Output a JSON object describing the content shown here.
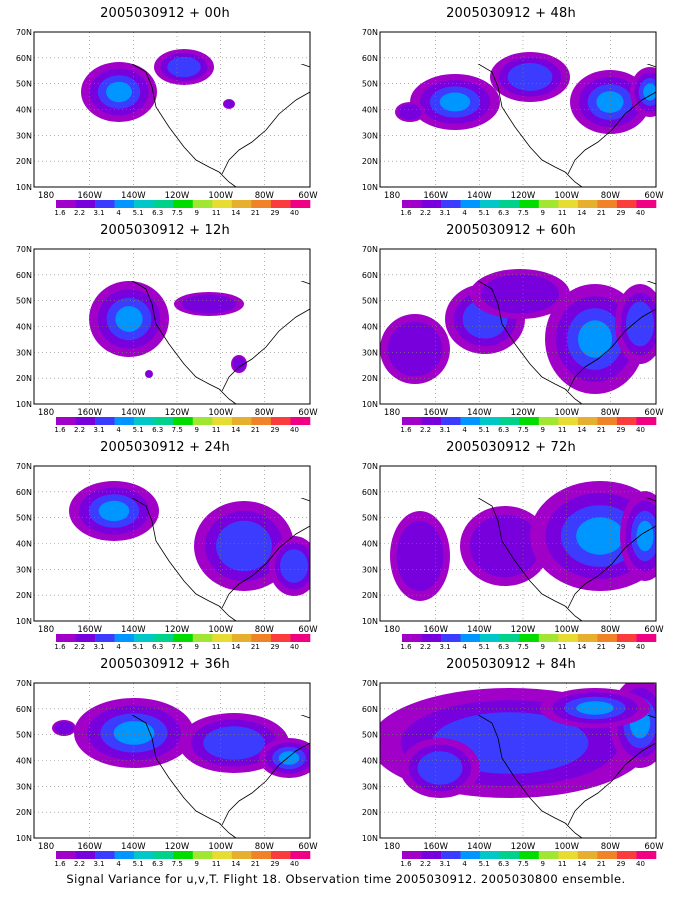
{
  "figure": {
    "caption": "Signal Variance for u,v,T. Flight 18. Observation time 2005030912. 2005030800 ensemble."
  },
  "axes": {
    "lat_labels": [
      "70N",
      "60N",
      "50N",
      "40N",
      "30N",
      "20N",
      "10N"
    ],
    "lon_labels": [
      "180",
      "160W",
      "140W",
      "120W",
      "100W",
      "80W",
      "60W"
    ]
  },
  "colorbar": {
    "labels": [
      "1.6",
      "2.2",
      "3.1",
      "4",
      "5.1",
      "6.3",
      "7.5",
      "9",
      "11",
      "14",
      "21",
      "29",
      "40"
    ],
    "colors": [
      "#a000c8",
      "#7800dc",
      "#3c3cff",
      "#0096ff",
      "#00c8c8",
      "#00d28c",
      "#00dc00",
      "#a0e632",
      "#e6dc32",
      "#e6af2d",
      "#f08228",
      "#fa3c3c",
      "#f00082"
    ]
  },
  "panels": [
    {
      "id": "p00",
      "title": "2005030912 + 00h"
    },
    {
      "id": "p48",
      "title": "2005030912 + 48h"
    },
    {
      "id": "p12",
      "title": "2005030912 + 12h"
    },
    {
      "id": "p60",
      "title": "2005030912 + 60h"
    },
    {
      "id": "p24",
      "title": "2005030912 + 24h"
    },
    {
      "id": "p72",
      "title": "2005030912 + 72h"
    },
    {
      "id": "p36",
      "title": "2005030912 + 36h"
    },
    {
      "id": "p84",
      "title": "2005030912 + 84h"
    }
  ]
}
